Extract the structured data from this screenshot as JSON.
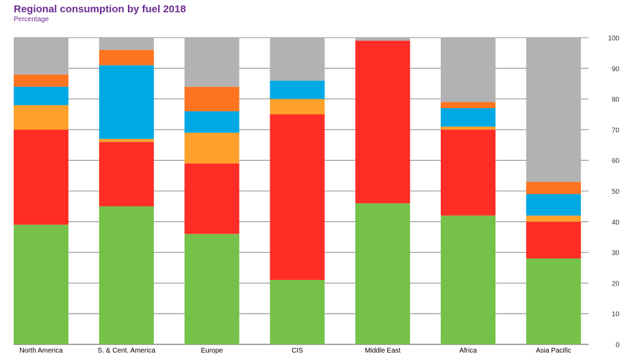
{
  "chart_data": {
    "type": "bar",
    "stacked": true,
    "title": "Regional consumption by fuel 2018",
    "subtitle": "Percentage",
    "categories": [
      "North America",
      "S. & Cent. America",
      "Europe",
      "CIS",
      "Middle East",
      "Africa",
      "Asia Pacific"
    ],
    "ylim": [
      0,
      100
    ],
    "yticks": [
      0,
      10,
      20,
      30,
      40,
      50,
      60,
      70,
      80,
      90,
      100
    ],
    "y_axis_side": "right",
    "grid": true,
    "legend": "none",
    "series": [
      {
        "color": "#76c14a",
        "values": [
          39,
          45,
          36,
          21,
          46,
          42,
          28
        ]
      },
      {
        "color": "#ff2d26",
        "values": [
          31,
          21,
          23,
          54,
          53,
          28,
          12
        ]
      },
      {
        "color": "#ffa12b",
        "values": [
          8,
          1,
          10,
          5,
          0,
          1,
          2
        ]
      },
      {
        "color": "#00a9e4",
        "values": [
          6,
          24,
          7,
          6,
          0,
          6,
          7
        ]
      },
      {
        "color": "#ff7421",
        "values": [
          4,
          5,
          8,
          0,
          0,
          2,
          4
        ]
      },
      {
        "color": "#b2b2b4",
        "values": [
          12,
          4,
          16,
          14,
          1,
          21,
          47
        ]
      }
    ]
  }
}
